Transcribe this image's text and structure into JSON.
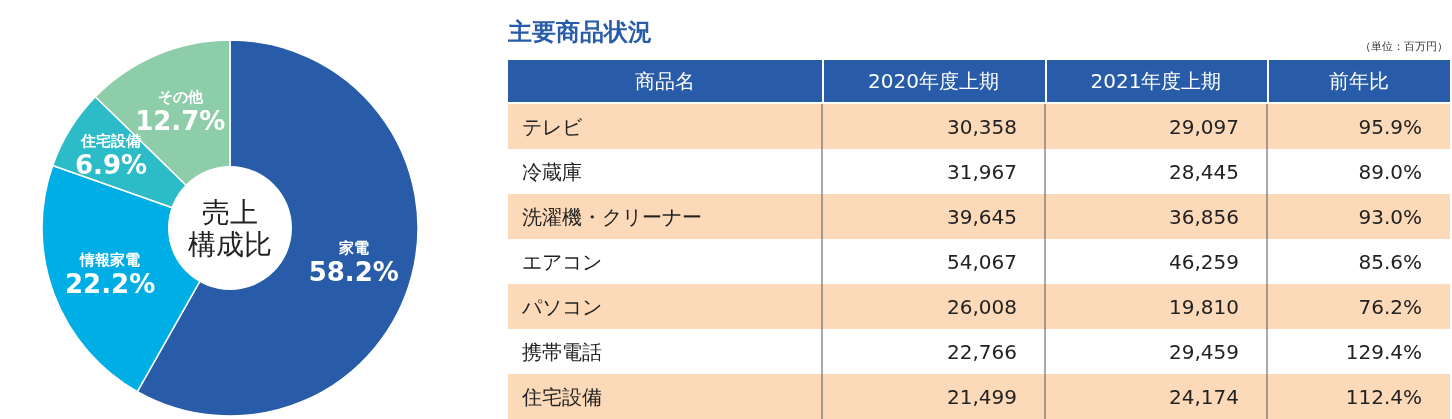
{
  "chart_data": [
    {
      "type": "donut",
      "categories": [
        "家電",
        "情報家電",
        "住宅設備",
        "その他"
      ],
      "values": [
        58.2,
        22.2,
        6.9,
        12.7
      ],
      "colors": [
        "#285ca8",
        "#00aee6",
        "#2cbcc8",
        "#8ecda9"
      ],
      "value_labels": [
        "58.2%",
        "22.2%",
        "6.9%",
        "12.7%"
      ],
      "annotations": [
        "売上",
        "構成比"
      ]
    },
    {
      "type": "other",
      "title": "主要商品状況",
      "annotations": [
        "（単位：百万円）"
      ],
      "categories": [
        "商品名",
        "2020年度上期",
        "2021年度上期",
        "前年比"
      ],
      "y_categories": [
        "テレビ",
        "冷蔵庫",
        "洗濯機・クリーナー",
        "エアコン",
        "パソコン",
        "携帯電話",
        "住宅設備"
      ],
      "cell_labels": [
        [
          "30,358",
          "29,097",
          "95.9%"
        ],
        [
          "31,967",
          "28,445",
          "89.0%"
        ],
        [
          "39,645",
          "36,856",
          "93.0%"
        ],
        [
          "54,067",
          "46,259",
          "85.6%"
        ],
        [
          "26,008",
          "19,810",
          "76.2%"
        ],
        [
          "22,766",
          "29,459",
          "129.4%"
        ],
        [
          "21,499",
          "24,174",
          "112.4%"
        ]
      ]
    }
  ]
}
